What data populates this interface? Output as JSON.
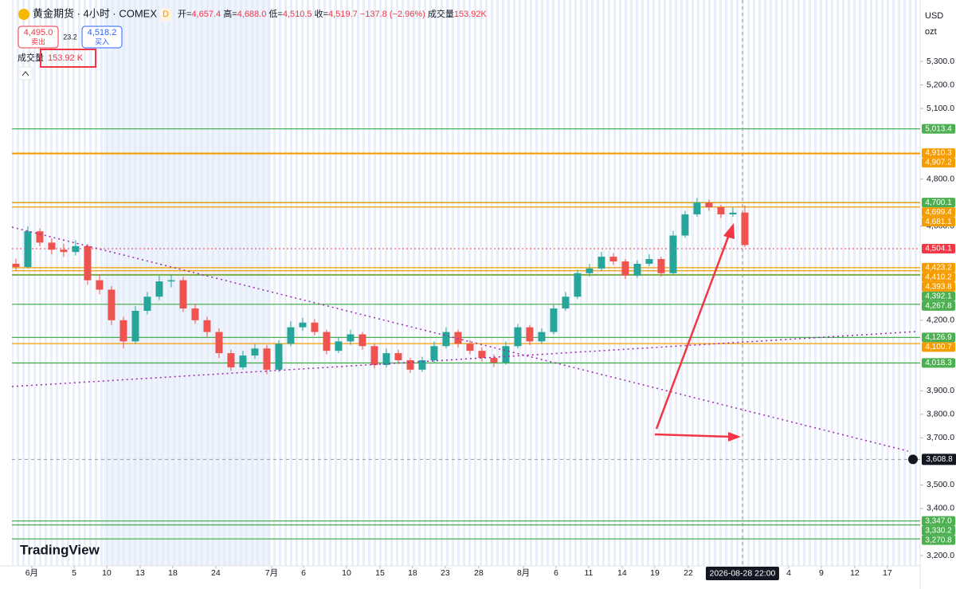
{
  "header": {
    "symbol": "黄金期货 · 4小时 · COMEX",
    "badge": "D",
    "ohlc": [
      {
        "label": "开",
        "value": "4,657.4"
      },
      {
        "label": "高",
        "value": "4,688.0"
      },
      {
        "label": "低",
        "value": "4,510.5"
      },
      {
        "label": "收",
        "value": "4,519.7"
      }
    ],
    "change": "−137.8 (−2.96%)",
    "volume_label": "成交量",
    "volume": "153.92K"
  },
  "trade": {
    "sell_price": "4,495.0",
    "sell": "卖出",
    "spread": "23.2",
    "buy_price": "4,518.2",
    "buy": "买入"
  },
  "volume_legend": {
    "label": "成交量",
    "value": "153.92 K"
  },
  "currency": "USD",
  "unit": "ozt",
  "brand": "TradingView",
  "chart_data": {
    "type": "candlestick",
    "up_color": "#26a69a",
    "down_color": "#ef5350",
    "open": [
      4440,
      4426,
      4578,
      4530,
      4500,
      4490,
      4515,
      4370,
      4330,
      4200,
      4110,
      4240,
      4300,
      4365,
      4370,
      4250,
      4200,
      4150,
      4060,
      4000,
      4050,
      4080,
      3990,
      4100,
      4170,
      4190,
      4150,
      4070,
      4110,
      4140,
      4090,
      4010,
      4060,
      4030,
      3990,
      4030,
      4090,
      4150,
      4100,
      4070,
      4040,
      4020,
      4090,
      4170,
      4110,
      4150,
      4250,
      4300,
      4400,
      4420,
      4470,
      4450,
      4390,
      4440,
      4460,
      4400,
      4560,
      4650,
      4700,
      4680,
      4650,
      4657.4
    ],
    "high": [
      4462,
      4600,
      4590,
      4548,
      4525,
      4540,
      4525,
      4395,
      4345,
      4215,
      4260,
      4320,
      4390,
      4395,
      4385,
      4270,
      4215,
      4165,
      4075,
      4070,
      4100,
      4095,
      4115,
      4195,
      4210,
      4205,
      4160,
      4130,
      4160,
      4150,
      4100,
      4080,
      4075,
      4040,
      4045,
      4110,
      4170,
      4160,
      4115,
      4085,
      4055,
      4110,
      4185,
      4180,
      4165,
      4265,
      4320,
      4415,
      4440,
      4490,
      4485,
      4460,
      4455,
      4480,
      4470,
      4580,
      4665,
      4720,
      4712,
      4690,
      4680,
      4688.0
    ],
    "low": [
      4410,
      4420,
      4515,
      4480,
      4470,
      4475,
      4350,
      4310,
      4180,
      4080,
      4100,
      4225,
      4285,
      4340,
      4235,
      4185,
      4130,
      4040,
      3985,
      3990,
      4035,
      3970,
      3980,
      4090,
      4155,
      4135,
      4055,
      4060,
      4095,
      4075,
      3995,
      4000,
      4015,
      3975,
      3980,
      4020,
      4080,
      4085,
      4055,
      4025,
      4000,
      4010,
      4080,
      4095,
      4100,
      4140,
      4240,
      4290,
      4385,
      4410,
      4435,
      4375,
      4380,
      4430,
      4385,
      4395,
      4550,
      4640,
      4665,
      4635,
      4640,
      4510.5
    ],
    "close": [
      4426,
      4578,
      4530,
      4500,
      4490,
      4515,
      4370,
      4330,
      4200,
      4110,
      4240,
      4300,
      4365,
      4370,
      4250,
      4200,
      4150,
      4060,
      4000,
      4050,
      4080,
      3990,
      4100,
      4170,
      4190,
      4150,
      4070,
      4110,
      4140,
      4090,
      4010,
      4060,
      4030,
      3990,
      4030,
      4090,
      4150,
      4100,
      4070,
      4040,
      4020,
      4090,
      4170,
      4110,
      4150,
      4250,
      4300,
      4400,
      4420,
      4470,
      4450,
      4390,
      4440,
      4460,
      4400,
      4560,
      4650,
      4700,
      4680,
      4650,
      4657.4,
      4519.7
    ],
    "xlim": [
      -0.33,
      75.67
    ],
    "xticks": [
      {
        "value": 1.33,
        "label": "6月"
      },
      {
        "value": 4.87,
        "label": "5"
      },
      {
        "value": 7.6,
        "label": "10"
      },
      {
        "value": 10.4,
        "label": "13"
      },
      {
        "value": 13.13,
        "label": "18"
      },
      {
        "value": 16.73,
        "label": "24"
      },
      {
        "value": 21.4,
        "label": "7月"
      },
      {
        "value": 24.07,
        "label": "6"
      },
      {
        "value": 27.67,
        "label": "10"
      },
      {
        "value": 30.47,
        "label": "15"
      },
      {
        "value": 33.2,
        "label": "18"
      },
      {
        "value": 35.93,
        "label": "23"
      },
      {
        "value": 38.73,
        "label": "28"
      },
      {
        "value": 42.47,
        "label": "8月"
      },
      {
        "value": 45.2,
        "label": "6"
      },
      {
        "value": 47.93,
        "label": "11"
      },
      {
        "value": 50.73,
        "label": "14"
      },
      {
        "value": 53.47,
        "label": "19"
      },
      {
        "value": 56.27,
        "label": "22"
      },
      {
        "value": 64.67,
        "label": "4"
      },
      {
        "value": 67.4,
        "label": "9"
      },
      {
        "value": 70.2,
        "label": "12"
      },
      {
        "value": 72.93,
        "label": "17"
      }
    ],
    "ylim": [
      3156,
      5561
    ],
    "yticks": [
      {
        "value": 5300,
        "label": "5,300.0"
      },
      {
        "value": 5200,
        "label": "5,200.0"
      },
      {
        "value": 5100,
        "label": "5,100.0"
      },
      {
        "value": 4800,
        "label": "4,800.0"
      },
      {
        "value": 4600,
        "label": "4,600.0"
      },
      {
        "value": 4200,
        "label": "4,200.0"
      },
      {
        "value": 3900,
        "label": "3,900.0"
      },
      {
        "value": 3800,
        "label": "3,800.0"
      },
      {
        "value": 3700,
        "label": "3,700.0"
      },
      {
        "value": 3500,
        "label": "3,500.0"
      },
      {
        "value": 3400,
        "label": "3,400.0"
      },
      {
        "value": 3200,
        "label": "3,200.0"
      }
    ],
    "levels": [
      {
        "value": 5013.4,
        "label": "5,013.4",
        "color": "#4caf50"
      },
      {
        "value": 4910.3,
        "label": "4,910.3",
        "color": "#f59c00"
      },
      {
        "value": 4907.2,
        "label": "4,907.2",
        "color": "#f59c00"
      },
      {
        "value": 4700.1,
        "label": "4,700.1",
        "color": "#4caf50"
      },
      {
        "value": 4699.4,
        "label": "4,699.4",
        "color": "#f59c00"
      },
      {
        "value": 4681.1,
        "label": "4,681.1",
        "color": "#f59c00"
      },
      {
        "value": 4504.1,
        "label": "4,504.1",
        "color": "#f23645"
      },
      {
        "value": 4423.2,
        "label": "4,423.2",
        "color": "#f59c00"
      },
      {
        "value": 4410.2,
        "label": "4,410.2",
        "color": "#f59c00"
      },
      {
        "value": 4393.8,
        "label": "4,393.8",
        "color": "#f59c00"
      },
      {
        "value": 4392.1,
        "label": "4,392.1",
        "color": "#4caf50"
      },
      {
        "value": 4267.8,
        "label": "4,267.8",
        "color": "#4caf50"
      },
      {
        "value": 4126.9,
        "label": "4,126.9",
        "color": "#4caf50"
      },
      {
        "value": 4100.7,
        "label": "4,100.7",
        "color": "#f59c00"
      },
      {
        "value": 4018.3,
        "label": "4,018.3",
        "color": "#4caf50"
      },
      {
        "value": 3347.0,
        "label": "3,347.0",
        "color": "#4caf50"
      },
      {
        "value": 3330.2,
        "label": "3,330.2",
        "color": "#4caf50"
      },
      {
        "value": 3270.8,
        "label": "3,270.8",
        "color": "#4caf50"
      }
    ],
    "crosshair": {
      "x": 60.8,
      "x_label": "2026-08-28  22:00",
      "y": 3608.8,
      "y_label": "3,608.8"
    }
  }
}
